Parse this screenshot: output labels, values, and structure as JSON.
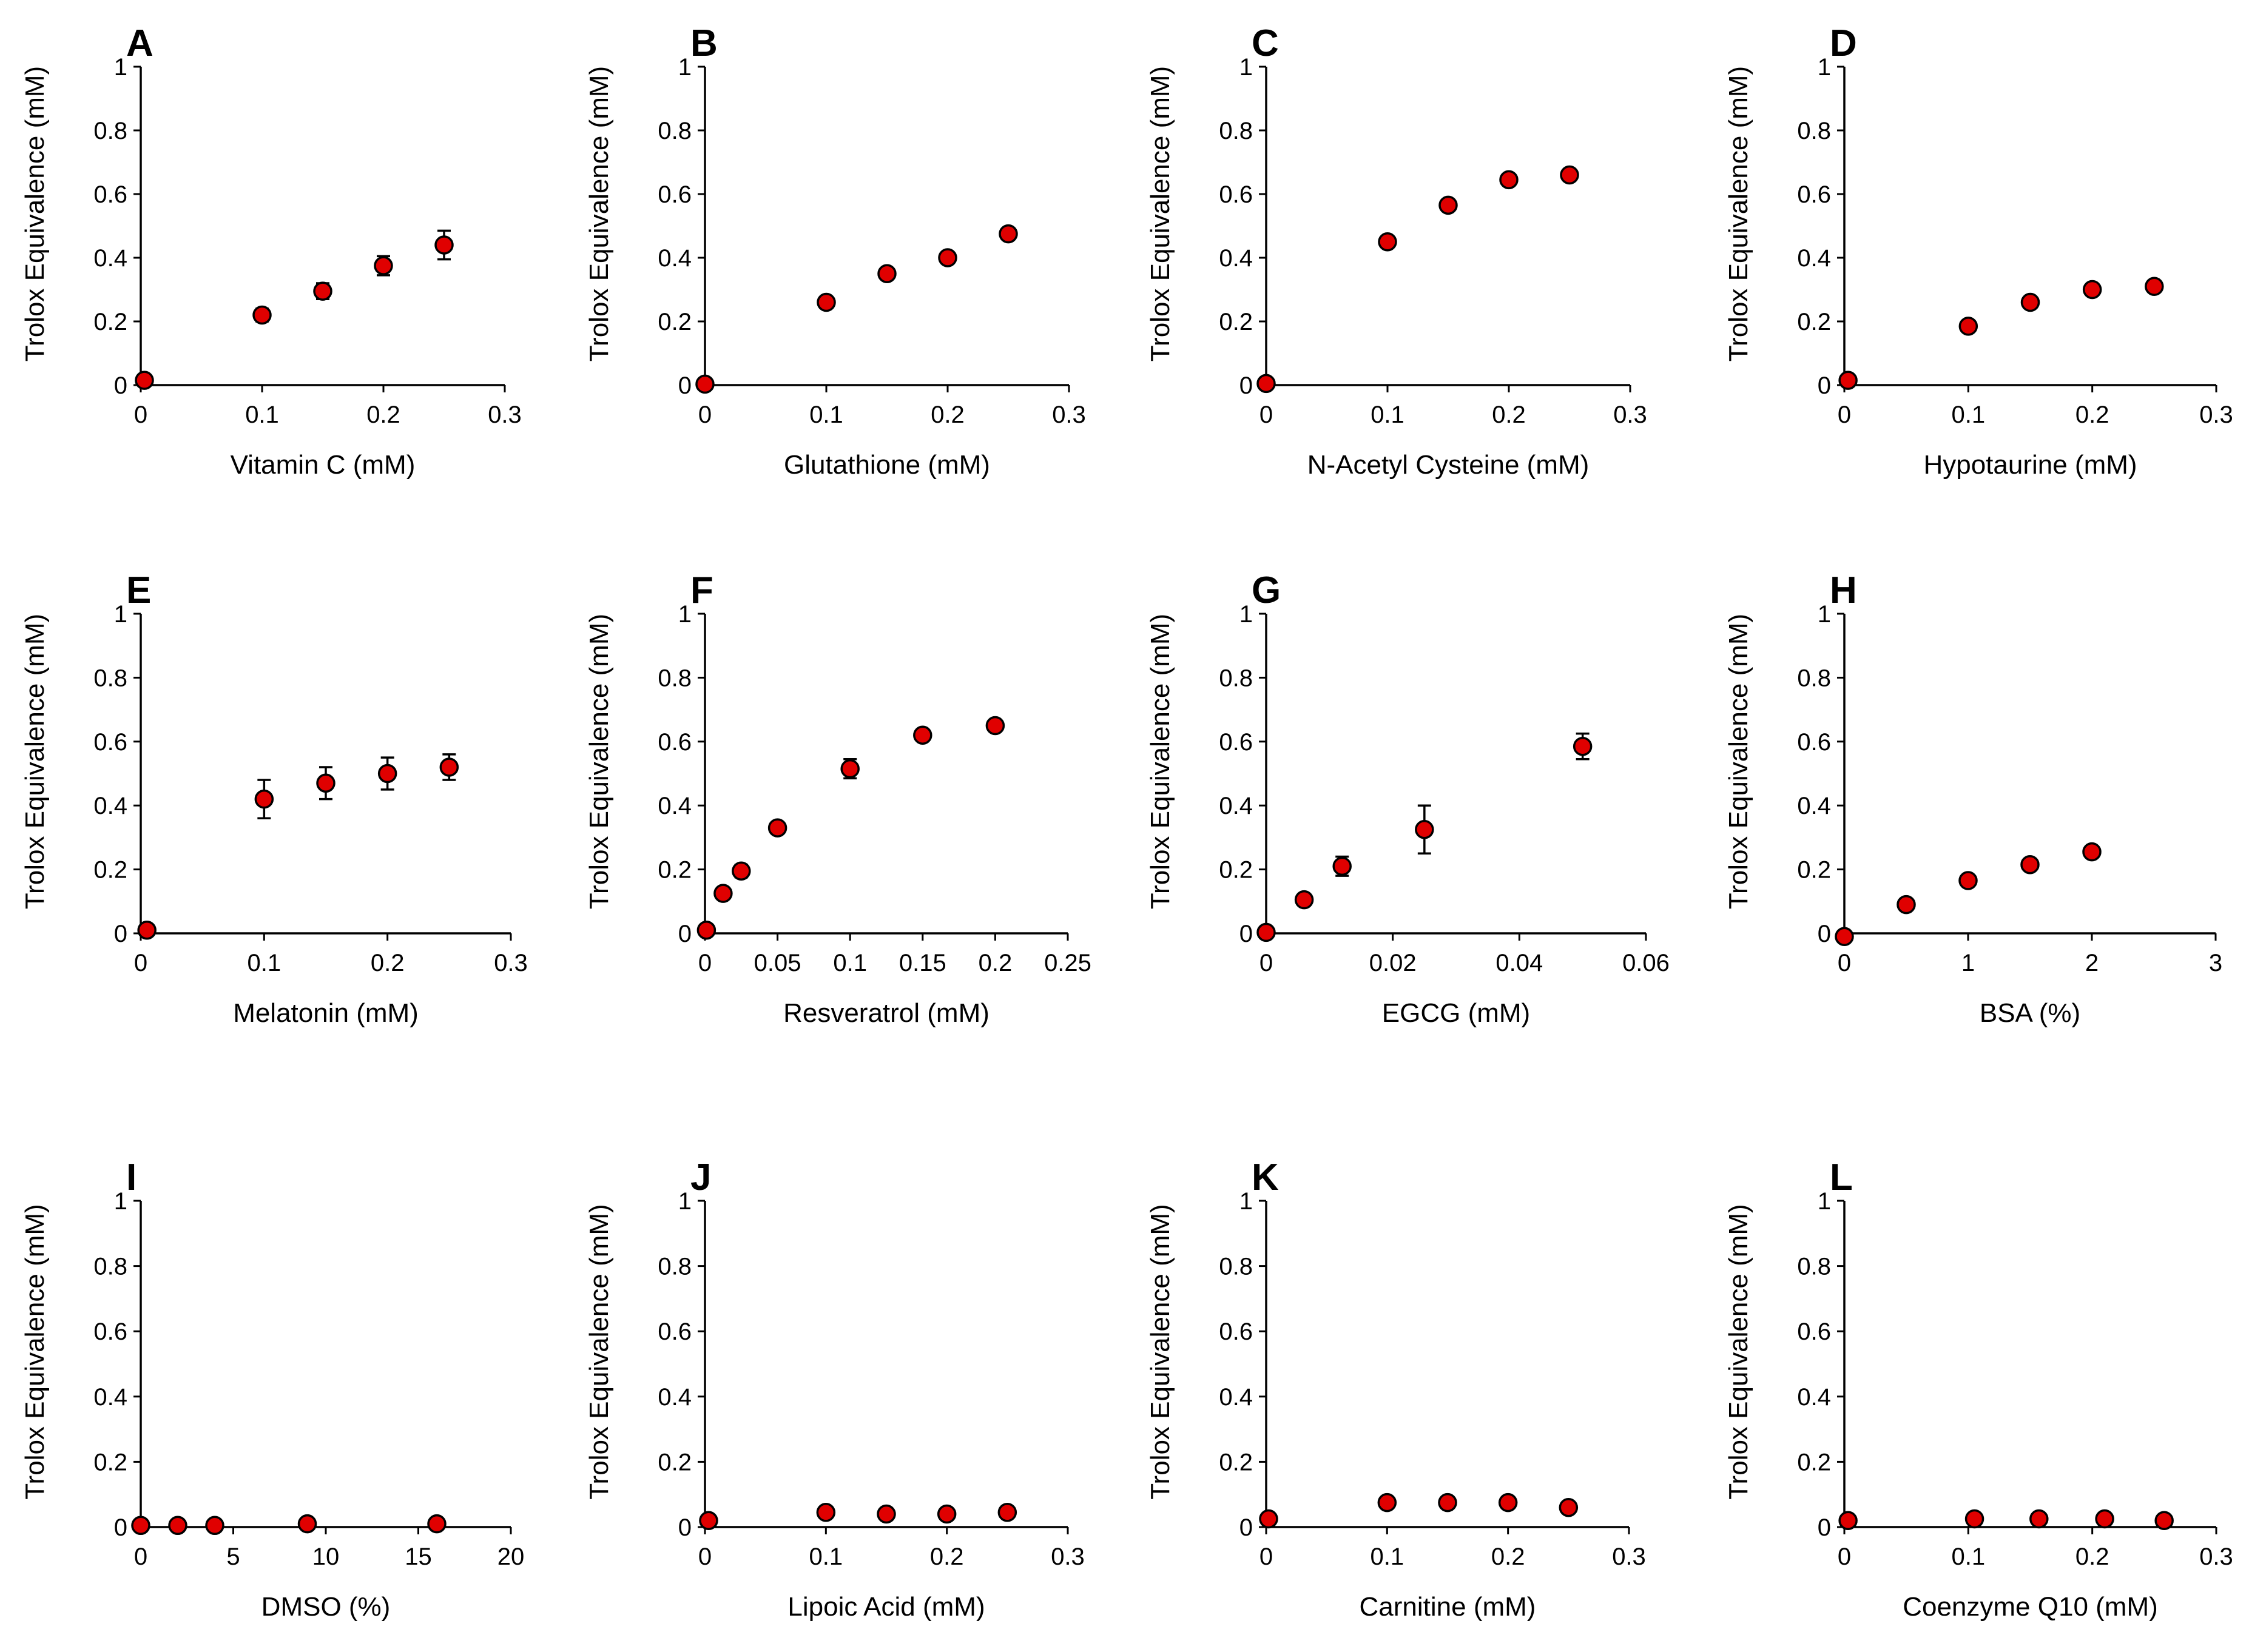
{
  "colors": {
    "marker": "#e00000",
    "marker_edge": "#000000",
    "axis": "#000000"
  },
  "chart_data": [
    {
      "panel": "A",
      "type": "scatter",
      "title": "",
      "xlabel": "Vitamin C (mM)",
      "ylabel": "Trolox Equivalence (mM)",
      "xlim": [
        0,
        0.3
      ],
      "ylim": [
        0,
        1
      ],
      "xticks": [
        "0",
        "0.1",
        "0.2",
        "0.3"
      ],
      "yticks": [
        "0",
        "0.2",
        "0.4",
        "0.6",
        "0.8",
        "1"
      ],
      "x": [
        0.003,
        0.1,
        0.15,
        0.2,
        0.25
      ],
      "y": [
        0.015,
        0.22,
        0.295,
        0.375,
        0.44
      ],
      "err": [
        0.005,
        0.02,
        0.025,
        0.03,
        0.045
      ]
    },
    {
      "panel": "B",
      "type": "scatter",
      "title": "",
      "xlabel": "Glutathione (mM)",
      "ylabel": "Trolox Equivalence (mM)",
      "xlim": [
        0,
        0.3
      ],
      "ylim": [
        0,
        1
      ],
      "xticks": [
        "0",
        "0.1",
        "0.2",
        "0.3"
      ],
      "yticks": [
        "0",
        "0.2",
        "0.4",
        "0.6",
        "0.8",
        "1"
      ],
      "x": [
        0.0,
        0.1,
        0.15,
        0.2,
        0.25
      ],
      "y": [
        0.003,
        0.26,
        0.35,
        0.4,
        0.475
      ],
      "err": [
        0,
        0.01,
        0.01,
        0.01,
        0.01
      ]
    },
    {
      "panel": "C",
      "type": "scatter",
      "title": "",
      "xlabel": "N-Acetyl Cysteine (mM)",
      "ylabel": "Trolox Equivalence (mM)",
      "xlim": [
        0,
        0.3
      ],
      "ylim": [
        0,
        1
      ],
      "xticks": [
        "0",
        "0.1",
        "0.2",
        "0.3"
      ],
      "yticks": [
        "0",
        "0.2",
        "0.4",
        "0.6",
        "0.8",
        "1"
      ],
      "x": [
        0.0,
        0.1,
        0.15,
        0.2,
        0.25
      ],
      "y": [
        0.005,
        0.45,
        0.565,
        0.645,
        0.66
      ],
      "err": [
        0,
        0.01,
        0.01,
        0.01,
        0.01
      ]
    },
    {
      "panel": "D",
      "type": "scatter",
      "title": "",
      "xlabel": "Hypotaurine (mM)",
      "ylabel": "Trolox Equivalence (mM)",
      "xlim": [
        0,
        0.3
      ],
      "ylim": [
        0,
        1
      ],
      "xticks": [
        "0",
        "0.1",
        "0.2",
        "0.3"
      ],
      "yticks": [
        "0",
        "0.2",
        "0.4",
        "0.6",
        "0.8",
        "1"
      ],
      "x": [
        0.003,
        0.1,
        0.15,
        0.2,
        0.25
      ],
      "y": [
        0.015,
        0.185,
        0.26,
        0.3,
        0.31
      ],
      "err": [
        0,
        0.01,
        0.01,
        0.01,
        0.01
      ]
    },
    {
      "panel": "E",
      "type": "scatter",
      "title": "",
      "xlabel": "Melatonin (mM)",
      "ylabel": "Trolox Equivalence (mM)",
      "xlim": [
        0,
        0.3
      ],
      "ylim": [
        0,
        1
      ],
      "xticks": [
        "0",
        "0.1",
        "0.2",
        "0.3"
      ],
      "yticks": [
        "0",
        "0.2",
        "0.4",
        "0.6",
        "0.8",
        "1"
      ],
      "x": [
        0.005,
        0.1,
        0.15,
        0.2,
        0.25
      ],
      "y": [
        0.01,
        0.42,
        0.47,
        0.5,
        0.52
      ],
      "err": [
        0,
        0.06,
        0.05,
        0.05,
        0.04
      ]
    },
    {
      "panel": "F",
      "type": "scatter",
      "title": "",
      "xlabel": "Resveratrol (mM)",
      "ylabel": "Trolox Equivalence (mM)",
      "xlim": [
        0,
        0.25
      ],
      "ylim": [
        0,
        1
      ],
      "xticks": [
        "0",
        "0.05",
        "0.1",
        "0.15",
        "0.2",
        "0.25"
      ],
      "yticks": [
        "0",
        "0.2",
        "0.4",
        "0.6",
        "0.8",
        "1"
      ],
      "x": [
        0.001,
        0.0125,
        0.025,
        0.05,
        0.1,
        0.15,
        0.2
      ],
      "y": [
        0.01,
        0.125,
        0.195,
        0.33,
        0.515,
        0.62,
        0.65
      ],
      "err": [
        0,
        0.01,
        0.02,
        0.01,
        0.03,
        0.01,
        0.01
      ]
    },
    {
      "panel": "G",
      "type": "scatter",
      "title": "",
      "xlabel": "EGCG (mM)",
      "ylabel": "Trolox Equivalence (mM)",
      "xlim": [
        0,
        0.06
      ],
      "ylim": [
        0,
        1
      ],
      "xticks": [
        "0",
        "0.02",
        "0.04",
        "0.06"
      ],
      "yticks": [
        "0",
        "0.2",
        "0.4",
        "0.6",
        "0.8",
        "1"
      ],
      "x": [
        0.0,
        0.006,
        0.012,
        0.025,
        0.05
      ],
      "y": [
        0.003,
        0.105,
        0.21,
        0.325,
        0.585
      ],
      "err": [
        0,
        0.01,
        0.03,
        0.075,
        0.04
      ]
    },
    {
      "panel": "H",
      "type": "scatter",
      "title": "",
      "xlabel": "BSA (%)",
      "ylabel": "Trolox Equivalence (mM)",
      "xlim": [
        0,
        3
      ],
      "ylim": [
        0,
        1
      ],
      "xticks": [
        "0",
        "1",
        "2",
        "3"
      ],
      "yticks": [
        "0",
        "0.2",
        "0.4",
        "0.6",
        "0.8",
        "1"
      ],
      "x": [
        0.0,
        0.5,
        1.0,
        1.5,
        2.0
      ],
      "y": [
        -0.01,
        0.09,
        0.165,
        0.215,
        0.255
      ],
      "err": [
        0,
        0.01,
        0.01,
        0.01,
        0.01
      ]
    },
    {
      "panel": "I",
      "type": "scatter",
      "title": "",
      "xlabel": "DMSO (%)",
      "ylabel": "Trolox Equivalence (mM)",
      "xlim": [
        0,
        20
      ],
      "ylim": [
        0,
        1
      ],
      "xticks": [
        "0",
        "5",
        "10",
        "15",
        "20"
      ],
      "yticks": [
        "0",
        "0.2",
        "0.4",
        "0.6",
        "0.8",
        "1"
      ],
      "x": [
        0.0,
        2.0,
        4.0,
        9.0,
        16.0
      ],
      "y": [
        0.005,
        0.005,
        0.005,
        0.01,
        0.01
      ],
      "err": [
        0,
        0,
        0,
        0.005,
        0.005
      ]
    },
    {
      "panel": "J",
      "type": "scatter",
      "title": "",
      "xlabel": "Lipoic Acid (mM)",
      "ylabel": "Trolox Equivalence (mM)",
      "xlim": [
        0,
        0.3
      ],
      "ylim": [
        0,
        1
      ],
      "xticks": [
        "0",
        "0.1",
        "0.2",
        "0.3"
      ],
      "yticks": [
        "0",
        "0.2",
        "0.4",
        "0.6",
        "0.8",
        "1"
      ],
      "x": [
        0.003,
        0.1,
        0.15,
        0.2,
        0.25
      ],
      "y": [
        0.02,
        0.045,
        0.04,
        0.04,
        0.045
      ],
      "err": [
        0,
        0,
        0,
        0,
        0
      ]
    },
    {
      "panel": "K",
      "type": "scatter",
      "title": "",
      "xlabel": "Carnitine (mM)",
      "ylabel": "Trolox Equivalence (mM)",
      "xlim": [
        0,
        0.3
      ],
      "ylim": [
        0,
        1
      ],
      "xticks": [
        "0",
        "0.1",
        "0.2",
        "0.3"
      ],
      "yticks": [
        "0",
        "0.2",
        "0.4",
        "0.6",
        "0.8",
        "1"
      ],
      "x": [
        0.002,
        0.1,
        0.15,
        0.2,
        0.25
      ],
      "y": [
        0.025,
        0.075,
        0.075,
        0.075,
        0.06
      ],
      "err": [
        0,
        0,
        0,
        0,
        0
      ]
    },
    {
      "panel": "L",
      "type": "scatter",
      "title": "",
      "xlabel": "Coenzyme Q10 (mM)",
      "ylabel": "Trolox Equivalence (mM)",
      "xlim": [
        0,
        0.3
      ],
      "ylim": [
        0,
        1
      ],
      "xticks": [
        "0",
        "0.1",
        "0.2",
        "0.3"
      ],
      "yticks": [
        "0",
        "0.2",
        "0.4",
        "0.6",
        "0.8",
        "1"
      ],
      "x": [
        0.003,
        0.105,
        0.157,
        0.21,
        0.258
      ],
      "y": [
        0.02,
        0.025,
        0.025,
        0.025,
        0.02
      ],
      "err": [
        0,
        0,
        0,
        0,
        0
      ]
    }
  ]
}
